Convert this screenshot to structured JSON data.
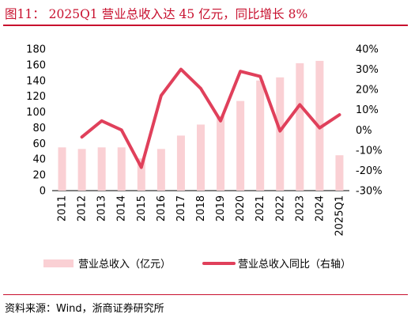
{
  "figure": {
    "title": "图11： 2025Q1 营业总收入达 45 亿元，同比增长 8%",
    "source": "资料来源：Wind，浙商证券研究所"
  },
  "colors": {
    "bar": "#fad0d4",
    "line": "#e0405b",
    "title": "#c8102e"
  },
  "chart_data": {
    "type": "bar",
    "categories": [
      "2011",
      "2012",
      "2013",
      "2014",
      "2015",
      "2016",
      "2017",
      "2018",
      "2019",
      "2020",
      "2021",
      "2022",
      "2023",
      "2024",
      "2025Q1"
    ],
    "series": [
      {
        "name": "营业总收入（亿元）",
        "type": "bar",
        "axis": "left",
        "values": [
          55,
          53,
          55,
          55,
          41,
          53,
          70,
          84,
          95,
          114,
          140,
          144,
          162,
          165,
          45
        ]
      },
      {
        "name": "营业总收入同比（右轴）",
        "type": "line",
        "axis": "right",
        "values": [
          null,
          -3.5,
          4.5,
          0,
          -18.5,
          17,
          30,
          20.5,
          4.5,
          29,
          26.5,
          -0.5,
          12.5,
          1,
          7.5
        ]
      }
    ],
    "y_left": {
      "lim": [
        0,
        180
      ],
      "ticks": [
        "0",
        "20",
        "40",
        "60",
        "80",
        "100",
        "120",
        "140",
        "160",
        "180"
      ]
    },
    "y_right": {
      "lim": [
        -30,
        40
      ],
      "ticks": [
        "-30%",
        "-20%",
        "-10%",
        "0%",
        "10%",
        "20%",
        "30%",
        "40%"
      ]
    },
    "grid": false,
    "legend_position": "bottom"
  }
}
